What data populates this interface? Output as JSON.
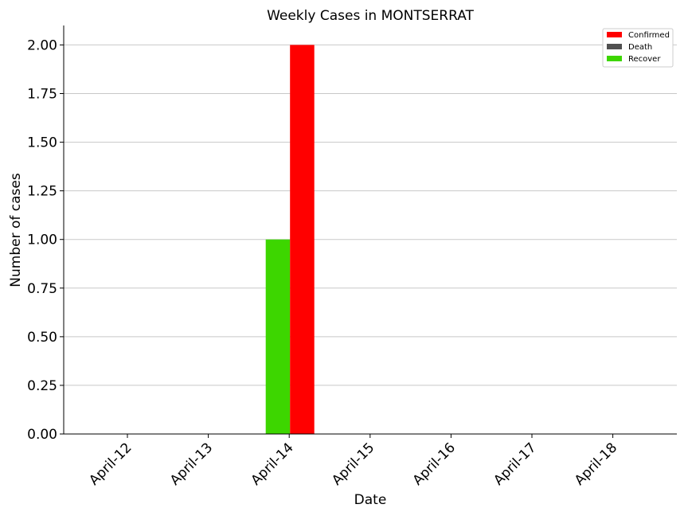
{
  "chart_data": {
    "type": "bar",
    "title": "Weekly Cases in MONTSERRAT",
    "xlabel": "Date",
    "ylabel": "Number of cases",
    "categories": [
      "April-12",
      "April-13",
      "April-14",
      "April-15",
      "April-16",
      "April-17",
      "April-18"
    ],
    "series": [
      {
        "name": "Confirmed",
        "color": "#ff0000",
        "values": [
          0,
          0,
          2,
          0,
          0,
          0,
          0
        ]
      },
      {
        "name": "Death",
        "color": "#505050",
        "values": [
          0,
          0,
          0,
          0,
          0,
          0,
          0
        ]
      },
      {
        "name": "Recover",
        "color": "#3dd600",
        "values": [
          0,
          0,
          1,
          0,
          0,
          0,
          0
        ]
      }
    ],
    "ylim": [
      0,
      2.1
    ],
    "yticks": [
      "0.00",
      "0.25",
      "0.50",
      "0.75",
      "1.00",
      "1.25",
      "1.50",
      "1.75",
      "2.00"
    ],
    "grid": "horizontal",
    "legend_position": "top-right"
  }
}
